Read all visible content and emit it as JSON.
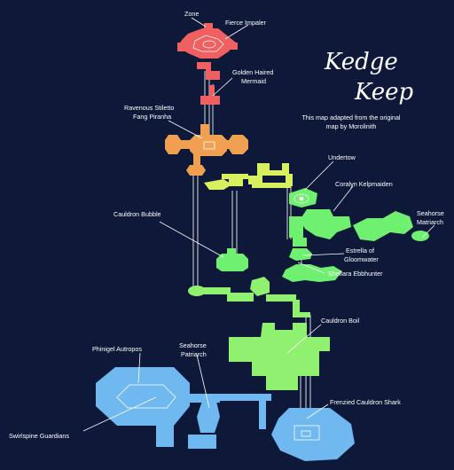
{
  "title": {
    "line1": "Kedge",
    "line2": "Keep",
    "credit_line1": "This map adapted from the original",
    "credit_line2": "map by Morolinith"
  },
  "labels": {
    "zone": "Zone",
    "fierce_impaler": "Fierce Impaler",
    "golden_haired_mermaid_1": "Golden Haired",
    "golden_haired_mermaid_2": "Mermaid",
    "ravenous_stiletto_1": "Ravenous Stiletto",
    "ravenous_stiletto_2": "Fang Piranha",
    "undertow": "Undertow",
    "coralyn_kelpmaiden": "Coralyn Kelpmaiden",
    "seahorse_matriarch_1": "Seahorse",
    "seahorse_matriarch_2": "Matriarch",
    "cauldron_bubble": "Cauldron Bubble",
    "estrella_1": "Estrella of",
    "estrella_2": "Gloomwater",
    "shellara_ebbhunter": "Shellara Ebbhunter",
    "cauldron_boil": "Cauldron Boil",
    "phinigel_autropos": "Phinigel Autropos",
    "seahorse_patriarch_1": "Seahorse",
    "seahorse_patriarch_2": "Patriarch",
    "frenzied_cauldron_shark": "Frenzied Cauldron Shark",
    "swirlspine_guardians": "Swirlspine Guardians"
  },
  "colors": {
    "background": "#0e1838",
    "level_top": "#f06060",
    "level_upper": "#f0a050",
    "level_mid_upper": "#d8f060",
    "level_mid": "#70f070",
    "level_lower": "#90f070",
    "level_bottom": "#70b8f0",
    "label_text": "#ffffff"
  }
}
